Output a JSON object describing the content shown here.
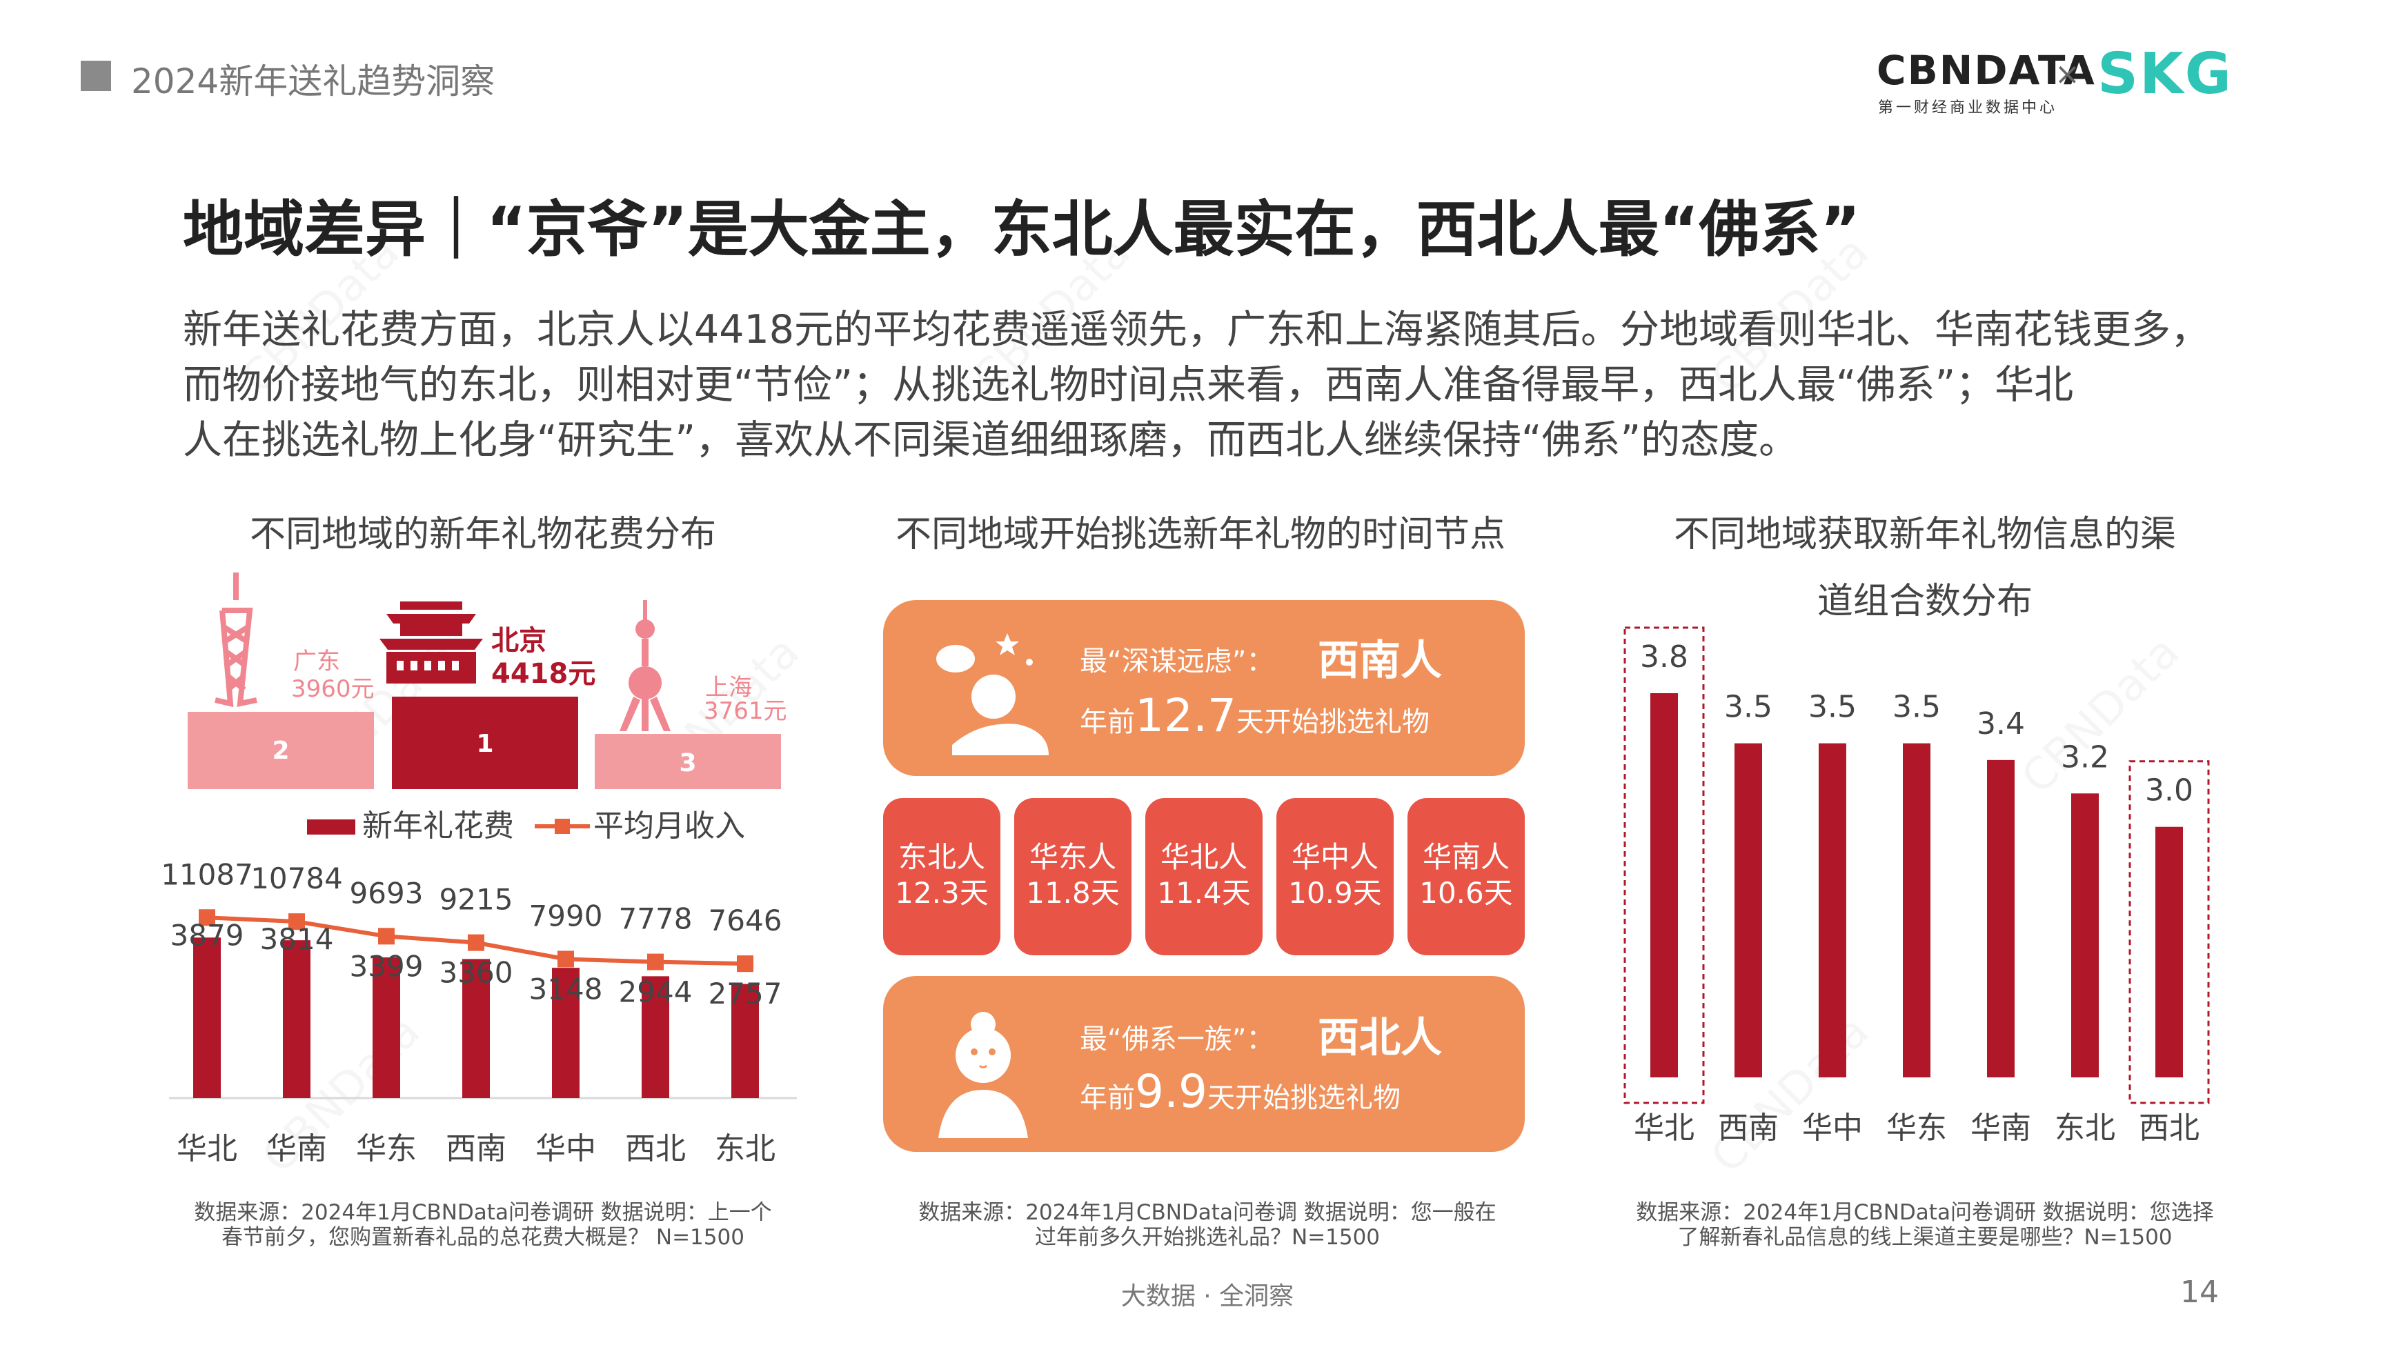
{
  "header": {
    "title": "2024新年送礼趋势洞察"
  },
  "logo": {
    "cbn": "CBNDATA",
    "cbn_sub": "第一财经商业数据中心",
    "x": "×",
    "skg": "SKG"
  },
  "main_title": "地域差异｜“京爷”是大金主，东北人最实在，西北人最“佛系”",
  "description": [
    "新年送礼花费方面，北京人以4418元的平均花费遥遥领先，广东和上海紧随其后。分地域看则华北、华南花钱更多，",
    "而物价接地气的东北，则相对更“节俭”；从挑选礼物时间点来看，西南人准备得最早，西北人最“佛系”；华北",
    "人在挑选礼物上化身“研究生”，喜欢从不同渠道细细琢磨，而西北人继续保持“佛系”的态度。"
  ],
  "watermark": "CBNData",
  "podium": [
    {
      "rank": "1",
      "city": "北京",
      "value": "4418元"
    },
    {
      "rank": "2",
      "city": "广东",
      "value": "3960元"
    },
    {
      "rank": "3",
      "city": "上海",
      "value": "3761元"
    }
  ],
  "chart_data": [
    {
      "type": "bar",
      "title": "不同地域的新年礼物花费分布",
      "categories": [
        "华北",
        "华南",
        "华东",
        "西南",
        "华中",
        "西北",
        "东北"
      ],
      "series": [
        {
          "name": "新年礼花费",
          "type": "bar",
          "values": [
            3879,
            3814,
            3399,
            3360,
            3148,
            2944,
            2757
          ],
          "color": "#b0182a"
        },
        {
          "name": "平均月收入",
          "type": "line",
          "values": [
            11087,
            10784,
            9693,
            9215,
            7990,
            7778,
            7646
          ],
          "color": "#e8613a"
        }
      ],
      "legend": "top",
      "grid": false
    },
    {
      "type": "table",
      "title": "不同地域开始挑选新年礼物的时间节点",
      "highlights": [
        {
          "label": "最“深谋远虑”：",
          "region": "西南人",
          "prefix": "年前",
          "days": "12.7",
          "suffix": "天开始挑选礼物"
        },
        {
          "label": "最“佛系一族”：",
          "region": "西北人",
          "prefix": "年前",
          "days": "9.9",
          "suffix": "天开始挑选礼物"
        }
      ],
      "items": [
        {
          "region": "东北人",
          "days": "12.3天"
        },
        {
          "region": "华东人",
          "days": "11.8天"
        },
        {
          "region": "华北人",
          "days": "11.4天"
        },
        {
          "region": "华中人",
          "days": "10.9天"
        },
        {
          "region": "华南人",
          "days": "10.6天"
        }
      ]
    },
    {
      "type": "bar",
      "title": "不同地域获取新年礼物信息的渠道组合数分布",
      "categories": [
        "华北",
        "西南",
        "华中",
        "华东",
        "华南",
        "东北",
        "西北"
      ],
      "values": [
        3.8,
        3.5,
        3.5,
        3.5,
        3.4,
        3.2,
        3.0
      ],
      "ylim": [
        1.5,
        3.8
      ],
      "highlighted": [
        "华北",
        "西北"
      ],
      "color": "#b0182a"
    }
  ],
  "chart_titles": {
    "c1": "不同地域的新年礼物花费分布",
    "c2": "不同地域开始挑选新年礼物的时间节点",
    "c3_line1": "不同地域获取新年礼物信息的渠",
    "c3_line2": "道组合数分布"
  },
  "sources": {
    "c1_l1": "数据来源：2024年1月CBNData问卷调研 数据说明：上一个",
    "c1_l2": "春节前夕，您购置新春礼品的总花费大概是？ N=1500",
    "c2_l1": "数据来源：2024年1月CBNData问卷调 数据说明：您一般在",
    "c2_l2": "过年前多久开始挑选礼品？N=1500",
    "c3_l1": "数据来源：2024年1月CBNData问卷调研 数据说明：您选择",
    "c3_l2": "了解新春礼品信息的线上渠道主要是哪些？N=1500"
  },
  "footer": {
    "center": "大数据 · 全洞察",
    "page": "14"
  },
  "colors": {
    "accent_red": "#b0182a",
    "pink": "#f0868f",
    "orange": "#f0905a",
    "red_box": "#e85446",
    "line_orange": "#e8613a"
  }
}
